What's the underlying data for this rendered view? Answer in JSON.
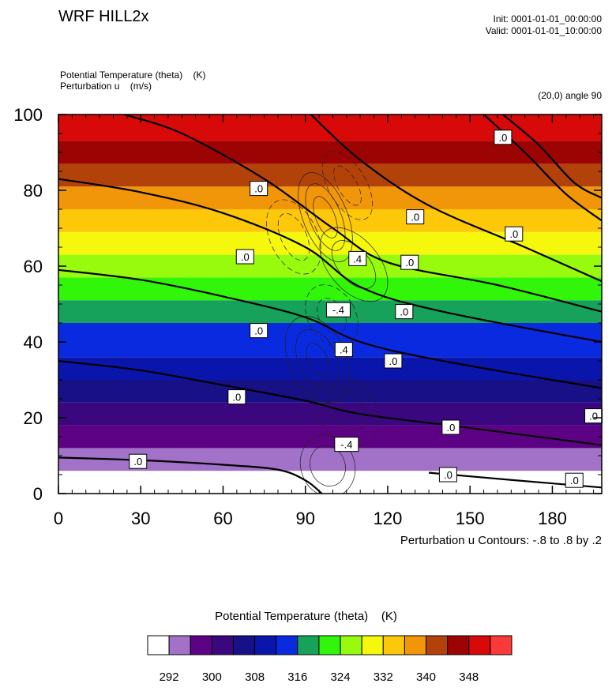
{
  "header": {
    "title": "WRF HILL2x",
    "init": "Init: 0001-01-01_00:00:00",
    "valid": "Valid: 0001-01-01_10:00:00",
    "field1": "Potential Temperature (theta)    (K)",
    "field2": "Perturbation u    (m/s)",
    "angle": "(20,0) angle 90"
  },
  "footer": {
    "contour_info": "Perturbation u Contours: -.8 to .8 by .2"
  },
  "legend": {
    "title": "Potential Temperature (theta)    (K)",
    "colors": [
      "#ffffff",
      "#a172c8",
      "#5e0285",
      "#3a077f",
      "#171087",
      "#0a16ab",
      "#0a2ae0",
      "#16a25a",
      "#32f60a",
      "#98fa0c",
      "#f5f70d",
      "#fdc80a",
      "#f19509",
      "#b3420a",
      "#9c0404",
      "#d80909",
      "#fa3939"
    ],
    "tick_labels": [
      "292",
      "300",
      "308",
      "316",
      "324",
      "332",
      "340",
      "348"
    ]
  },
  "chart_data": {
    "type": "heatmap",
    "x_ticks": [
      "0",
      "30",
      "60",
      "90",
      "120",
      "150",
      "180"
    ],
    "y_ticks": [
      "0",
      "20",
      "40",
      "60",
      "80",
      "100"
    ],
    "xlim": [
      0,
      198
    ],
    "ylim": [
      0,
      100
    ],
    "filled_field": {
      "name": "Potential Temperature (theta)",
      "units": "K",
      "band_colors_bottom_to_top": [
        "#ffffff",
        "#a172c8",
        "#5e0285",
        "#3a077f",
        "#171087",
        "#0a16ab",
        "#0a2ae0",
        "#16a25a",
        "#32f60a",
        "#98fa0c",
        "#f5f70d",
        "#fdc80a",
        "#f19509",
        "#b3420a",
        "#9c0404",
        "#d80909"
      ],
      "band_tops": [
        6,
        12,
        18,
        24,
        30,
        36,
        45,
        51,
        57,
        63,
        69,
        75,
        81,
        87,
        93,
        100
      ]
    },
    "line_field": {
      "name": "Perturbation u",
      "units": "m/s",
      "zero_contours": [
        [
          [
            0,
            9.5
          ],
          [
            30,
            8.8
          ],
          [
            60,
            7.6
          ],
          [
            80,
            6.3
          ],
          [
            90,
            3.5
          ],
          [
            96,
            0
          ]
        ],
        [
          [
            135,
            5.5
          ],
          [
            165,
            3.6
          ],
          [
            198,
            1.6
          ]
        ],
        [
          [
            0,
            35
          ],
          [
            30,
            32.5
          ],
          [
            60,
            28.6
          ],
          [
            90,
            24.5
          ],
          [
            110,
            21
          ],
          [
            150,
            17.3
          ],
          [
            198,
            12.8
          ]
        ],
        [
          [
            0,
            59
          ],
          [
            30,
            56.4
          ],
          [
            60,
            52
          ],
          [
            90,
            46.5
          ],
          [
            110,
            40
          ],
          [
            140,
            35
          ],
          [
            198,
            27.8
          ]
        ],
        [
          [
            0,
            83
          ],
          [
            30,
            79.5
          ],
          [
            60,
            74
          ],
          [
            90,
            65
          ],
          [
            110,
            54.5
          ],
          [
            140,
            48
          ],
          [
            198,
            40
          ]
        ],
        [
          [
            24,
            100
          ],
          [
            45,
            95
          ],
          [
            75,
            83
          ],
          [
            100,
            70
          ],
          [
            120,
            61
          ],
          [
            160,
            55
          ],
          [
            198,
            48
          ]
        ],
        [
          [
            92,
            100
          ],
          [
            110,
            88
          ],
          [
            135,
            76
          ],
          [
            170,
            65
          ],
          [
            198,
            56
          ]
        ],
        [
          [
            155,
            100
          ],
          [
            170,
            90
          ],
          [
            185,
            79
          ],
          [
            198,
            72
          ]
        ],
        [
          [
            162,
            100
          ],
          [
            175,
            92
          ],
          [
            188,
            82
          ],
          [
            198,
            78
          ]
        ]
      ],
      "labels": [
        {
          "text": ".0",
          "x": 29,
          "y": 8.5
        },
        {
          "text": ".0",
          "x": 65,
          "y": 25.5
        },
        {
          "text": ".0",
          "x": 73,
          "y": 43
        },
        {
          "text": ".0",
          "x": 68,
          "y": 62.5
        },
        {
          "text": ".0",
          "x": 73,
          "y": 80.5
        },
        {
          "text": ".0",
          "x": 162,
          "y": 94
        },
        {
          "text": ".0",
          "x": 130,
          "y": 73
        },
        {
          "text": ".0",
          "x": 166,
          "y": 68.5
        },
        {
          "text": ".0",
          "x": 128,
          "y": 61
        },
        {
          "text": ".0",
          "x": 126,
          "y": 48
        },
        {
          "text": ".0",
          "x": 122,
          "y": 35
        },
        {
          "text": ".0",
          "x": 143,
          "y": 17.5
        },
        {
          "text": ".0",
          "x": 195,
          "y": 20.5
        },
        {
          "text": ".0",
          "x": 142,
          "y": 5
        },
        {
          "text": ".0",
          "x": 188,
          "y": 3.5
        },
        {
          "text": ".4",
          "x": 109,
          "y": 62
        },
        {
          "text": ".4",
          "x": 104,
          "y": 38
        },
        {
          "text": "-.4",
          "x": 102,
          "y": 48.5
        },
        {
          "text": "-.4",
          "x": 105,
          "y": 13
        }
      ]
    }
  }
}
